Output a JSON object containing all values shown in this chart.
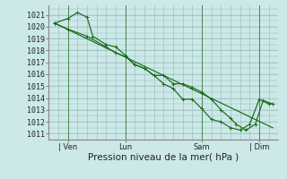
{
  "bg_color": "#cce8e8",
  "grid_color": "#99bbbb",
  "line_color": "#1a6b1a",
  "ylabel_ticks": [
    1011,
    1012,
    1013,
    1014,
    1015,
    1016,
    1017,
    1018,
    1019,
    1020,
    1021
  ],
  "ylim": [
    1010.5,
    1021.8
  ],
  "xlim": [
    0,
    12.0
  ],
  "xlabel": "Pression niveau de la mer( hPa )",
  "x_tick_labels": [
    "| Ven",
    "Lun",
    "Sam",
    "| Dim"
  ],
  "x_tick_positions": [
    1,
    4,
    8,
    11
  ],
  "vlines_x": [
    1,
    4,
    8,
    11
  ],
  "trend_x": [
    0.3,
    11.7
  ],
  "trend_y": [
    1020.3,
    1011.5
  ],
  "s1_x": [
    0.3,
    1.0,
    1.5,
    2.0,
    2.3,
    3.0,
    3.5,
    4.0,
    4.5,
    5.0,
    5.5,
    6.0,
    6.5,
    7.0,
    7.5
  ],
  "s1_y": [
    1020.3,
    1020.7,
    1021.2,
    1020.8,
    1019.2,
    1018.5,
    1018.3,
    1017.6,
    1016.8,
    1016.5,
    1015.9,
    1015.9,
    1015.2,
    1015.2,
    1014.9
  ],
  "s2_x": [
    0.3,
    1.0,
    2.0,
    3.0,
    3.5,
    4.0,
    4.5,
    5.0,
    5.5,
    6.0,
    6.5,
    7.0,
    7.5,
    8.0,
    8.5,
    9.0,
    9.5,
    10.0,
    10.5,
    11.0,
    11.5
  ],
  "s2_y": [
    1020.3,
    1019.8,
    1019.2,
    1018.3,
    1017.8,
    1017.5,
    1016.8,
    1016.5,
    1015.9,
    1015.2,
    1014.8,
    1013.9,
    1013.9,
    1013.1,
    1012.2,
    1012.0,
    1011.5,
    1011.3,
    1011.8,
    1013.9,
    1013.5
  ],
  "s3_x": [
    7.5,
    8.0,
    8.5,
    9.0,
    9.5,
    9.8,
    10.3,
    10.8,
    11.2,
    11.7
  ],
  "s3_y": [
    1014.9,
    1014.5,
    1013.9,
    1013.0,
    1012.3,
    1011.8,
    1011.3,
    1011.8,
    1013.8,
    1013.5
  ],
  "tick_fontsize": 6,
  "xlabel_fontsize": 7.5
}
